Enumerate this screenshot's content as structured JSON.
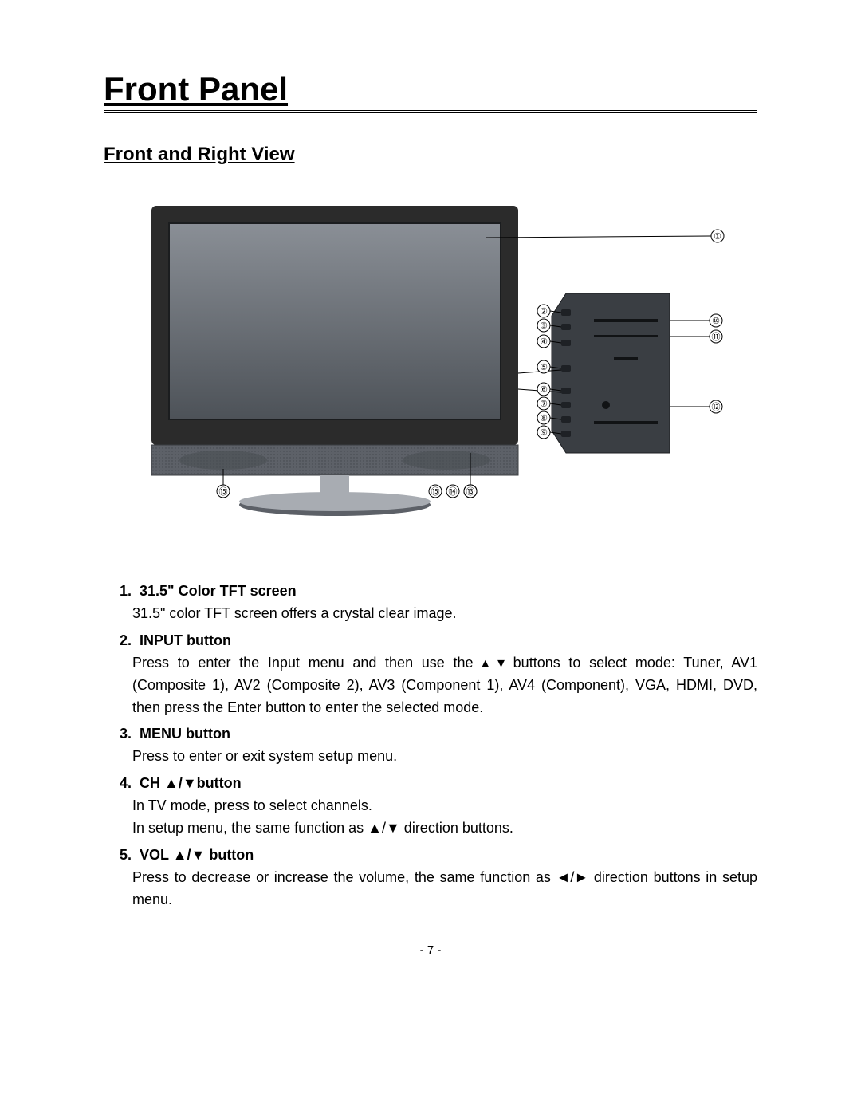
{
  "page": {
    "title": "Front Panel",
    "subtitle": "Front and Right View",
    "page_number": "- 7 -"
  },
  "diagram": {
    "type": "infographic",
    "description": "Front and right-side view of a flat-screen TV with numbered callouts",
    "bg": "#ffffff",
    "tv": {
      "bezel_color": "#2b2b2b",
      "screen_gradient_top": "#8a8f96",
      "screen_gradient_bottom": "#4d5258",
      "speaker_color": "#5d6168",
      "stand_color": "#a8acb2",
      "base_color": "#5c6067"
    },
    "side_panel": {
      "body_color": "#3a3e43",
      "button_color": "#1e2125",
      "slot_color": "#111315"
    },
    "leader_color": "#000000",
    "callout_bg": "#ffffff",
    "callout_border": "#000000",
    "callouts_left": [
      "②",
      "③",
      "④",
      "⑤",
      "⑥",
      "⑦",
      "⑧",
      "⑨"
    ],
    "callouts_right": [
      "⑩",
      "⑪",
      "⑫"
    ],
    "callout_screen": "①",
    "callouts_bottom_left": "⑮",
    "callouts_bottom_right": [
      "⑮",
      "⑭",
      "⑬"
    ]
  },
  "items": [
    {
      "num": "1.",
      "title": "31.5\" Color TFT screen",
      "body": "31.5\" color TFT screen offers a crystal clear image."
    },
    {
      "num": "2.",
      "title": "INPUT button",
      "body": "Press to enter the Input menu and then use the ▴ ▾ buttons to select mode: Tuner, AV1 (Composite 1), AV2 (Composite 2), AV3 (Component 1), AV4 (Component), VGA, HDMI, DVD, then press the Enter button to enter the selected mode."
    },
    {
      "num": "3.",
      "title": "MENU button",
      "body": "Press to enter or exit system setup menu."
    },
    {
      "num": "4.",
      "title": "CH ▲/▼button",
      "body_lines": [
        "In TV mode, press to select channels.",
        "In setup menu, the same function as ▲/▼ direction buttons."
      ]
    },
    {
      "num": "5.",
      "title": "VOL ▲/▼ button",
      "body": "Press to decrease or increase the volume, the same function as ◄/► direction buttons in setup menu."
    }
  ]
}
